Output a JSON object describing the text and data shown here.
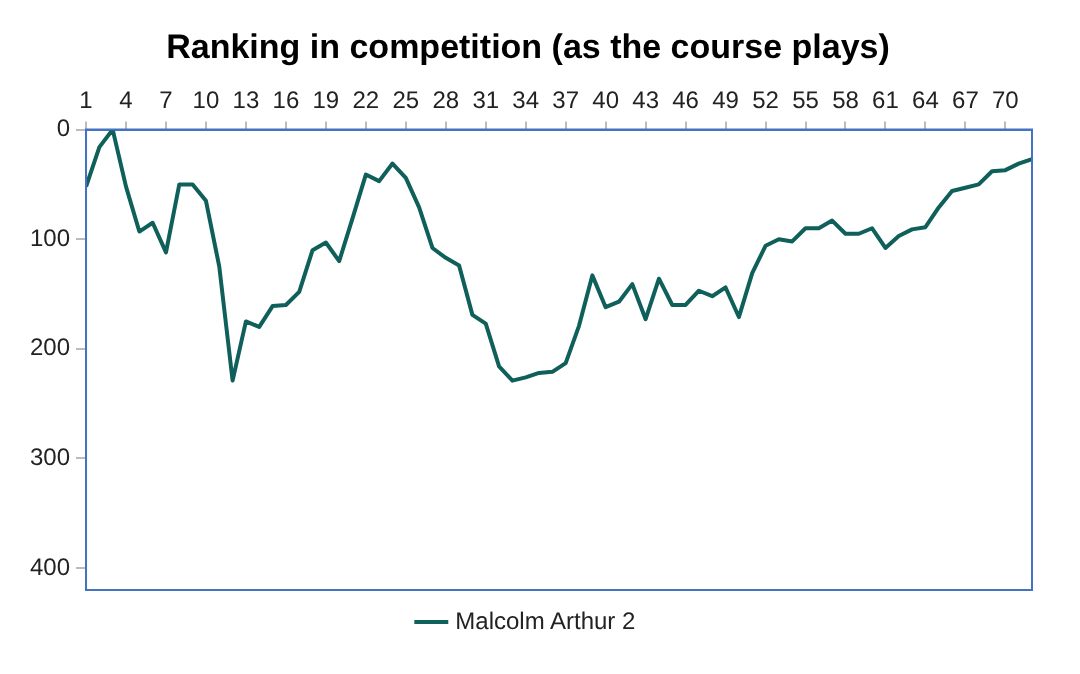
{
  "chart_data": {
    "type": "line",
    "title": "Ranking in competition (as the course plays)",
    "x": [
      1,
      2,
      3,
      4,
      5,
      6,
      7,
      8,
      9,
      10,
      11,
      12,
      13,
      14,
      15,
      16,
      17,
      18,
      19,
      20,
      21,
      22,
      23,
      24,
      25,
      26,
      27,
      28,
      29,
      30,
      31,
      32,
      33,
      34,
      35,
      36,
      37,
      38,
      39,
      40,
      41,
      42,
      43,
      44,
      45,
      46,
      47,
      48,
      49,
      50,
      51,
      52,
      53,
      54,
      55,
      56,
      57,
      58,
      59,
      60,
      61,
      62,
      63,
      64,
      65,
      66,
      67,
      68,
      69,
      70,
      71,
      72
    ],
    "series": [
      {
        "name": "Malcolm Arthur 2",
        "color": "#0f5f5a",
        "values": [
          52,
          16,
          0,
          52,
          93,
          85,
          112,
          50,
          50,
          65,
          125,
          229,
          175,
          180,
          161,
          160,
          148,
          110,
          103,
          120,
          81,
          41,
          47,
          31,
          44,
          71,
          108,
          117,
          124,
          169,
          177,
          216,
          229,
          226,
          222,
          221,
          213,
          179,
          133,
          162,
          157,
          141,
          173,
          136,
          160,
          160,
          147,
          152,
          144,
          171,
          131,
          106,
          100,
          102,
          90,
          90,
          83,
          95,
          95,
          90,
          108,
          97,
          91,
          89,
          71,
          56,
          53,
          50,
          38,
          37,
          31,
          27
        ]
      }
    ],
    "xlim": [
      1,
      72
    ],
    "xticks": [
      1,
      4,
      7,
      10,
      13,
      16,
      19,
      22,
      25,
      28,
      31,
      34,
      37,
      40,
      43,
      46,
      49,
      52,
      55,
      58,
      61,
      64,
      67,
      70
    ],
    "ylim": [
      420,
      0
    ],
    "yticks": [
      0,
      100,
      200,
      300,
      400
    ],
    "legend": "bottom",
    "marker": "none",
    "line_style": "solid"
  }
}
